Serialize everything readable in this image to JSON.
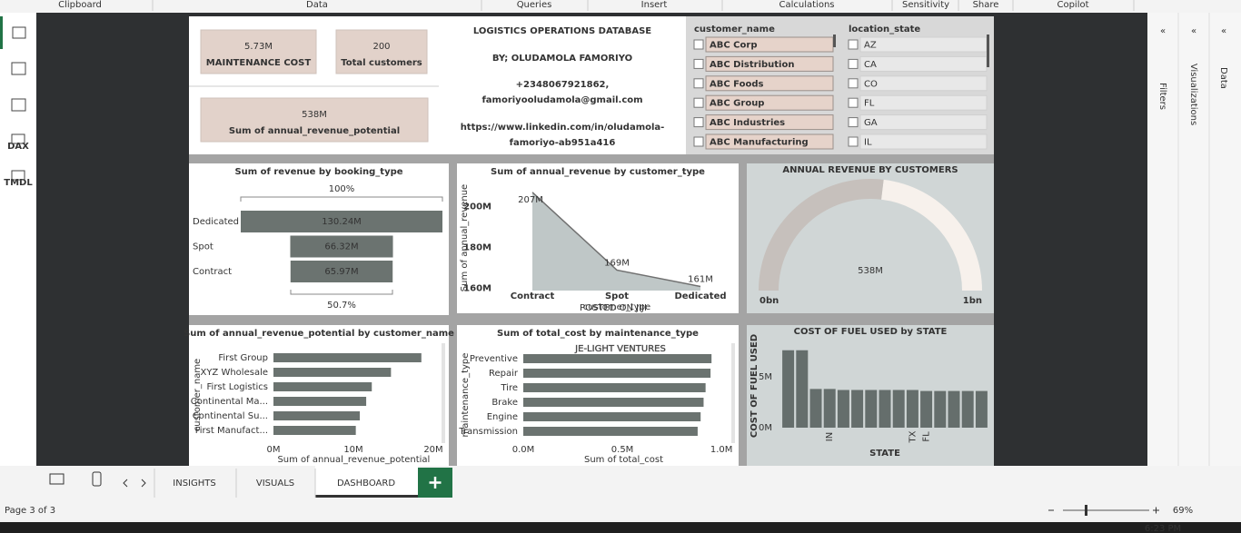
{
  "ribbon": {
    "groups": [
      "Clipboard",
      "Data",
      "Queries",
      "Insert",
      "Calculations",
      "Sensitivity",
      "Share",
      "Copilot"
    ]
  },
  "sidebar": {
    "labels": [
      "DAX",
      "TMDL"
    ]
  },
  "cards": [
    {
      "value": "5.73M",
      "label": "MAINTENANCE COST"
    },
    {
      "value": "200",
      "label": "Total customers"
    },
    {
      "value": "538M",
      "label": "Sum of annual_revenue_potential"
    }
  ],
  "header": {
    "title": "LOGISTICS OPERATIONS DATABASE",
    "author": "BY; OLUDAMOLA FAMORIYO",
    "phone": "+2348067921862,",
    "email": "famoriyooludamola@gmail.com",
    "link": [
      "https://www.linkedin.com/in/oludamola-",
      "famoriyo-ab951a416"
    ]
  },
  "slicers": [
    {
      "title": "customer_name",
      "items": [
        "ABC Corp",
        "ABC Distribution",
        "ABC Foods",
        "ABC Group",
        "ABC Industries",
        "ABC Manufacturing"
      ]
    },
    {
      "title": "location_state",
      "items": [
        "AZ",
        "CA",
        "CO",
        "FL",
        "GA",
        "IL"
      ]
    }
  ],
  "chart_data": [
    {
      "type": "funnel",
      "title": "Sum of revenue by booking_type",
      "categories": [
        "Dedicated",
        "Spot",
        "Contract"
      ],
      "values": [
        130.24,
        66.32,
        65.97
      ],
      "value_labels": [
        "130.24M",
        "66.32M",
        "65.97M"
      ],
      "annotations": [
        "100%",
        "50.7%"
      ],
      "color": "#6b7370"
    },
    {
      "type": "area",
      "title": "Sum of annual_revenue by customer_type",
      "categories": [
        "Contract",
        "Spot",
        "Dedicated"
      ],
      "values": [
        207,
        169,
        161
      ],
      "value_labels": [
        "207M",
        "169M",
        "161M"
      ],
      "ylim": [
        159,
        210
      ],
      "yticks": [
        {
          "value": 160,
          "label": "160M"
        },
        {
          "value": 180,
          "label": "180M"
        },
        {
          "value": 200,
          "label": "200M"
        }
      ],
      "xlabel": "customer_type",
      "ylabel": "Sum of annual_revenue",
      "color": "#bfc7c7"
    },
    {
      "type": "gauge",
      "title": "ANNUAL REVENUE BY CUSTOMERS",
      "value": 538,
      "value_label": "538M",
      "lim": [
        {
          "value": 0,
          "label": "0bn"
        },
        {
          "value": 1000,
          "label": "1bn"
        }
      ],
      "color": "#c6c0bc"
    },
    {
      "type": "barh",
      "title": "Sum of annual_revenue_potential by customer_name",
      "categories": [
        "First Group",
        "XYZ Wholesale",
        "First Logistics",
        "Continental Ma...",
        "Continental Su...",
        "First Manufact..."
      ],
      "values": [
        18.5,
        14.7,
        12.3,
        11.6,
        10.8,
        10.3
      ],
      "xlim": [
        0,
        21
      ],
      "xticks": [
        {
          "value": 0,
          "label": "0M"
        },
        {
          "value": 10,
          "label": "10M"
        },
        {
          "value": 20,
          "label": "20M"
        }
      ],
      "xlabel": "Sum of annual_revenue_potential",
      "ylabel": "customer_name",
      "color": "#6b7370"
    },
    {
      "type": "barh",
      "title": "Sum of total_cost by maintenance_type",
      "categories": [
        "Preventive",
        "Repair",
        "Tire",
        "Brake",
        "Engine",
        "Transmission"
      ],
      "values": [
        0.95,
        0.945,
        0.92,
        0.91,
        0.895,
        0.88
      ],
      "xlim": [
        0,
        1.05
      ],
      "xticks": [
        {
          "value": 0,
          "label": "0.0M"
        },
        {
          "value": 0.5,
          "label": "0.5M"
        },
        {
          "value": 1,
          "label": "1.0M"
        }
      ],
      "xlabel": "Sum of total_cost",
      "ylabel": "maintenance_type",
      "color": "#6b7370"
    },
    {
      "type": "bar",
      "title": "COST OF FUEL USED by STATE",
      "categories": [
        null,
        null,
        null,
        "IN",
        null,
        null,
        null,
        null,
        null,
        "TX",
        "FL",
        null,
        null,
        null,
        null
      ],
      "values": [
        7.6,
        7.6,
        3.8,
        3.8,
        3.7,
        3.7,
        3.7,
        3.7,
        3.7,
        3.7,
        3.6,
        3.6,
        3.6,
        3.6,
        3.6
      ],
      "ylim": [
        0,
        8.2
      ],
      "yticks": [
        {
          "value": 0,
          "label": "0M"
        },
        {
          "value": 5,
          "label": "5M"
        }
      ],
      "xlabel": "STATE",
      "ylabel": "COST OF FUEL USED",
      "color": "#656e6c"
    }
  ],
  "watermarks": [
    "POSTED ON JIJI",
    "JE-LIGHT VENTURES"
  ],
  "tabs": {
    "pages": [
      "INSIGHTS",
      "VISUALS",
      "DASHBOARD"
    ]
  },
  "panes": [
    "Filters",
    "Visualizations",
    "Data"
  ],
  "status": {
    "page": "Page 3 of 3",
    "zoom": "69%"
  },
  "taskbar": {
    "time": "6:23 PM"
  }
}
